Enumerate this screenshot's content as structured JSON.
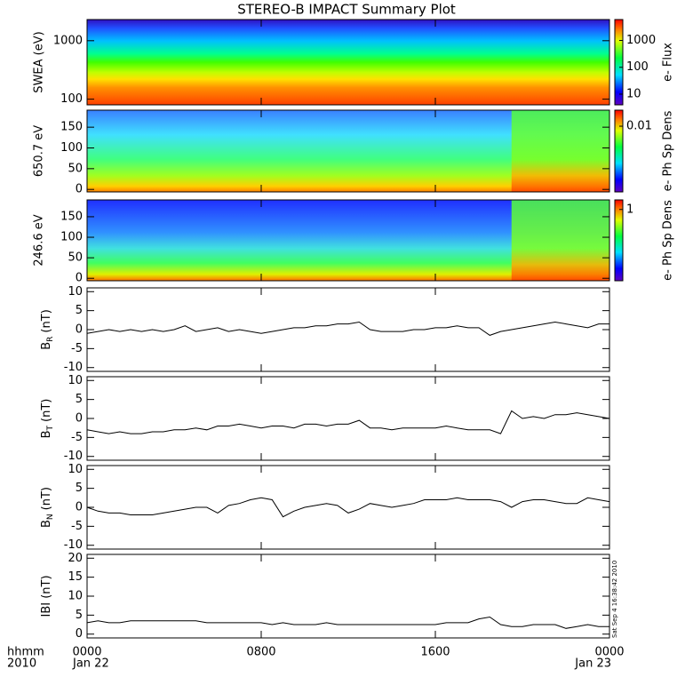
{
  "title": "STEREO-B IMPACT Summary Plot",
  "timestamp": "Sat Sep  4 16:38:42 2010",
  "x_axis": {
    "xlim": [
      0,
      24
    ],
    "xticks": [
      {
        "value": 0,
        "label": "0000"
      },
      {
        "value": 8,
        "label": "0800"
      },
      {
        "value": 16,
        "label": "1600"
      },
      {
        "value": 24,
        "label": "0000"
      }
    ],
    "date_labels": [
      "Jan 22",
      "Jan 23"
    ],
    "left_labels": [
      "hhmm",
      "2010"
    ]
  },
  "chart_data": [
    {
      "type": "spectrogram",
      "ylabel": "SWEA (eV)",
      "log": true,
      "ylim": [
        80,
        2300
      ],
      "yticks": [
        100,
        1000
      ],
      "colorbar": {
        "label": "e- Flux",
        "log": true,
        "clim": [
          4,
          6000
        ],
        "ticks": [
          10,
          100,
          1000
        ]
      }
    },
    {
      "type": "spectrogram",
      "ylabel": "650.7 eV",
      "log": false,
      "ylim": [
        -6,
        191
      ],
      "yticks": [
        0,
        50,
        100,
        150
      ],
      "colorbar": {
        "label": "e- Ph Sp Dens",
        "log": true,
        "clim": [
          3.4e-05,
          0.04
        ],
        "ticks": [
          0.01
        ]
      }
    },
    {
      "type": "spectrogram",
      "ylabel": "246.6 eV",
      "log": false,
      "ylim": [
        -6,
        191
      ],
      "yticks": [
        0,
        50,
        100,
        150
      ],
      "colorbar": {
        "label": "e- Ph Sp Dens",
        "log": true,
        "clim": [
          0.002,
          2.3
        ],
        "ticks": [
          1
        ]
      }
    },
    {
      "type": "line",
      "ylabel": "B",
      "ylabel_sub": "R",
      "ylabel_unit": "(nT)",
      "ylim": [
        -11,
        11
      ],
      "yticks": [
        -10,
        -5,
        0,
        5,
        10
      ],
      "color": "#000000",
      "x": [
        0,
        0.5,
        1,
        1.5,
        2,
        2.5,
        3,
        3.5,
        4,
        4.5,
        5,
        5.5,
        6,
        6.5,
        7,
        7.5,
        8,
        8.5,
        9,
        9.5,
        10,
        10.5,
        11,
        11.5,
        12,
        12.5,
        13,
        13.5,
        14,
        14.5,
        15,
        15.5,
        16,
        16.5,
        17,
        17.5,
        18,
        18.5,
        19,
        19.5,
        20,
        20.5,
        21,
        21.5,
        22,
        22.5,
        23,
        23.5,
        24
      ],
      "values": [
        -1,
        -0.5,
        0,
        -0.5,
        0,
        -0.5,
        0,
        -0.5,
        0,
        1,
        -0.5,
        0,
        0.5,
        -0.5,
        0,
        -0.5,
        -1,
        -0.5,
        0,
        0.5,
        0.5,
        1,
        1,
        1.5,
        1.5,
        2,
        0,
        -0.5,
        -0.5,
        -0.5,
        0,
        0,
        0.5,
        0.5,
        1,
        0.5,
        0.5,
        -1.5,
        -0.5,
        0,
        0.5,
        1,
        1.5,
        2,
        1.5,
        1,
        0.5,
        1.5,
        1.5
      ]
    },
    {
      "type": "line",
      "ylabel": "B",
      "ylabel_sub": "T",
      "ylabel_unit": "(nT)",
      "ylim": [
        -11,
        11
      ],
      "yticks": [
        -10,
        -5,
        0,
        5,
        10
      ],
      "color": "#000000",
      "x": [
        0,
        0.5,
        1,
        1.5,
        2,
        2.5,
        3,
        3.5,
        4,
        4.5,
        5,
        5.5,
        6,
        6.5,
        7,
        7.5,
        8,
        8.5,
        9,
        9.5,
        10,
        10.5,
        11,
        11.5,
        12,
        12.5,
        13,
        13.5,
        14,
        14.5,
        15,
        15.5,
        16,
        16.5,
        17,
        17.5,
        18,
        18.5,
        19,
        19.5,
        20,
        20.5,
        21,
        21.5,
        22,
        22.5,
        23,
        23.5,
        24
      ],
      "values": [
        -3,
        -3.5,
        -4,
        -3.5,
        -4,
        -4,
        -3.5,
        -3.5,
        -3,
        -3,
        -2.5,
        -3,
        -2,
        -2,
        -1.5,
        -2,
        -2.5,
        -2,
        -2,
        -2.5,
        -1.5,
        -1.5,
        -2,
        -1.5,
        -1.5,
        -0.5,
        -2.5,
        -2.5,
        -3,
        -2.5,
        -2.5,
        -2.5,
        -2.5,
        -2,
        -2.5,
        -3,
        -3,
        -3,
        -4,
        2,
        0,
        0.5,
        0,
        1,
        1,
        1.5,
        1,
        0.5,
        0
      ]
    },
    {
      "type": "line",
      "ylabel": "B",
      "ylabel_sub": "N",
      "ylabel_unit": "(nT)",
      "ylim": [
        -11,
        11
      ],
      "yticks": [
        -10,
        -5,
        0,
        5,
        10
      ],
      "color": "#000000",
      "x": [
        0,
        0.5,
        1,
        1.5,
        2,
        2.5,
        3,
        3.5,
        4,
        4.5,
        5,
        5.5,
        6,
        6.5,
        7,
        7.5,
        8,
        8.5,
        9,
        9.5,
        10,
        10.5,
        11,
        11.5,
        12,
        12.5,
        13,
        13.5,
        14,
        14.5,
        15,
        15.5,
        16,
        16.5,
        17,
        17.5,
        18,
        18.5,
        19,
        19.5,
        20,
        20.5,
        21,
        21.5,
        22,
        22.5,
        23,
        23.5,
        24
      ],
      "values": [
        0,
        -1,
        -1.5,
        -1.5,
        -2,
        -2,
        -2,
        -1.5,
        -1,
        -0.5,
        0,
        0,
        -1.5,
        0.5,
        1,
        2,
        2.5,
        2,
        -2.5,
        -1,
        0,
        0.5,
        1,
        0.5,
        -1.5,
        -0.5,
        1,
        0.5,
        0,
        0.5,
        1,
        2,
        2,
        2,
        2.5,
        2,
        2,
        2,
        1.5,
        0,
        1.5,
        2,
        2,
        1.5,
        1,
        1,
        2.5,
        2,
        1.5
      ]
    },
    {
      "type": "line",
      "ylabel": "IBI (nT)",
      "ylim": [
        -1,
        21
      ],
      "yticks": [
        0,
        5,
        10,
        15,
        20
      ],
      "color": "#000000",
      "x": [
        0,
        0.5,
        1,
        1.5,
        2,
        2.5,
        3,
        3.5,
        4,
        4.5,
        5,
        5.5,
        6,
        6.5,
        7,
        7.5,
        8,
        8.5,
        9,
        9.5,
        10,
        10.5,
        11,
        11.5,
        12,
        12.5,
        13,
        13.5,
        14,
        14.5,
        15,
        15.5,
        16,
        16.5,
        17,
        17.5,
        18,
        18.5,
        19,
        19.5,
        20,
        20.5,
        21,
        21.5,
        22,
        22.5,
        23,
        23.5,
        24
      ],
      "values": [
        3,
        3.5,
        3,
        3,
        3.5,
        3.5,
        3.5,
        3.5,
        3.5,
        3.5,
        3.5,
        3,
        3,
        3,
        3,
        3,
        3,
        2.5,
        3,
        2.5,
        2.5,
        2.5,
        3,
        2.5,
        2.5,
        2.5,
        2.5,
        2.5,
        2.5,
        2.5,
        2.5,
        2.5,
        2.5,
        3,
        3,
        3,
        4,
        4.5,
        2.5,
        2,
        2,
        2.5,
        2.5,
        2.5,
        1.5,
        2,
        2.5,
        2,
        2
      ]
    }
  ]
}
